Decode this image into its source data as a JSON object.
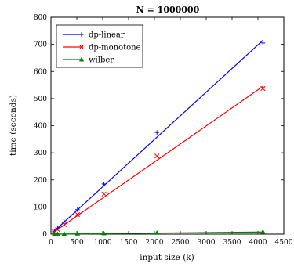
{
  "chart_data": {
    "type": "line",
    "title": "N = 1000000",
    "xlabel": "input size (k)",
    "ylabel": "time (seconds)",
    "xlim": [
      0,
      4500
    ],
    "ylim": [
      0,
      800
    ],
    "xticks": [
      0,
      500,
      1000,
      1500,
      2000,
      2500,
      3000,
      3500,
      4000,
      4500
    ],
    "yticks": [
      0,
      100,
      200,
      300,
      400,
      500,
      600,
      700,
      800
    ],
    "grid": false,
    "legend_position": "top-left",
    "series": [
      {
        "name": "dp-linear",
        "color": "#0000ff",
        "marker": "+",
        "points": [
          [
            64,
            10
          ],
          [
            128,
            22
          ],
          [
            256,
            45
          ],
          [
            512,
            90
          ],
          [
            1024,
            185
          ],
          [
            2048,
            375
          ],
          [
            4096,
            705
          ]
        ],
        "fit": [
          [
            0,
            0
          ],
          [
            4096,
            715
          ]
        ]
      },
      {
        "name": "dp-monotone",
        "color": "#ff0000",
        "marker": "x",
        "points": [
          [
            64,
            8
          ],
          [
            128,
            17
          ],
          [
            256,
            35
          ],
          [
            512,
            72
          ],
          [
            1024,
            148
          ],
          [
            2048,
            288
          ],
          [
            4096,
            537
          ]
        ],
        "fit": [
          [
            0,
            0
          ],
          [
            4096,
            545
          ]
        ]
      },
      {
        "name": "wilber",
        "color": "#008000",
        "marker": "^",
        "points": [
          [
            64,
            0.5
          ],
          [
            128,
            1
          ],
          [
            256,
            1.5
          ],
          [
            512,
            2
          ],
          [
            1024,
            3
          ],
          [
            2048,
            5
          ],
          [
            4096,
            9
          ]
        ],
        "fit": [
          [
            0,
            0
          ],
          [
            4096,
            8
          ]
        ]
      }
    ]
  }
}
